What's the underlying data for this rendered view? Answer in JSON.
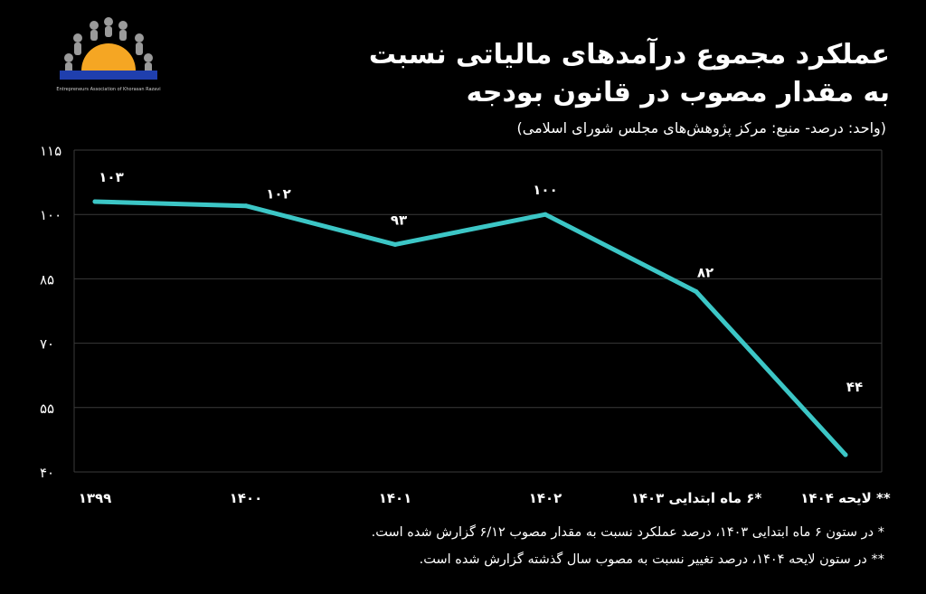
{
  "header": {
    "title_line1": "عملکرد مجموع درآمدهای مالیاتی  نسبت",
    "title_line2": "به مقدار مصوب در قانون بودجه",
    "subtitle": "(واحد: درصد- منبع: مرکز پژوهش‌های مجلس شورای اسلامی)"
  },
  "logo": {
    "caption": "Entrepreneurs Association of Khorasan Razavi",
    "sun_color": "#f5a623",
    "band_color": "#1f3fae"
  },
  "colors": {
    "background": "#000000",
    "line": "#3cc6c6",
    "grid": "#3a3a3a",
    "text": "#ffffff"
  },
  "chart_data": {
    "type": "line",
    "categories": [
      "1399",
      "1400",
      "1401",
      "1402",
      "*۶ ماه ابتدایی ۱۴۰۳",
      "** لایحه ۱۴۰۴"
    ],
    "series": [
      {
        "values": [
          103,
          102,
          93,
          100,
          82,
          44
        ],
        "labels": [
          "۱۰۳",
          "۱۰۲",
          "۹۳",
          "۱۰۰",
          "۸۲",
          "۴۴"
        ]
      }
    ],
    "yticks": [
      40,
      55,
      70,
      85,
      100,
      115
    ],
    "ytick_labels": [
      "۴۰",
      "۵۵",
      "۷۰",
      "۸۵",
      "۱۰۰",
      "۱۱۵"
    ],
    "xtick_labels": [
      "۱۳۹۹",
      "۱۴۰۰",
      "۱۴۰۱",
      "۱۴۰۲",
      "*۶ ماه ابتدایی ۱۴۰۳",
      "** لایحه ۱۴۰۴"
    ],
    "ylim": [
      40,
      115
    ],
    "grid": true,
    "xlabel": "",
    "ylabel": ""
  },
  "notes": [
    "* در ستون ۶ ماه ابتدایی ۱۴۰۳، درصد عملکرد نسبت به مقدار مصوب ۶/۱۲ گزارش شده است.",
    "** در ستون لایحه ۱۴۰۴، درصد تغییر نسبت به مصوب سال گذشته گزارش شده است."
  ]
}
